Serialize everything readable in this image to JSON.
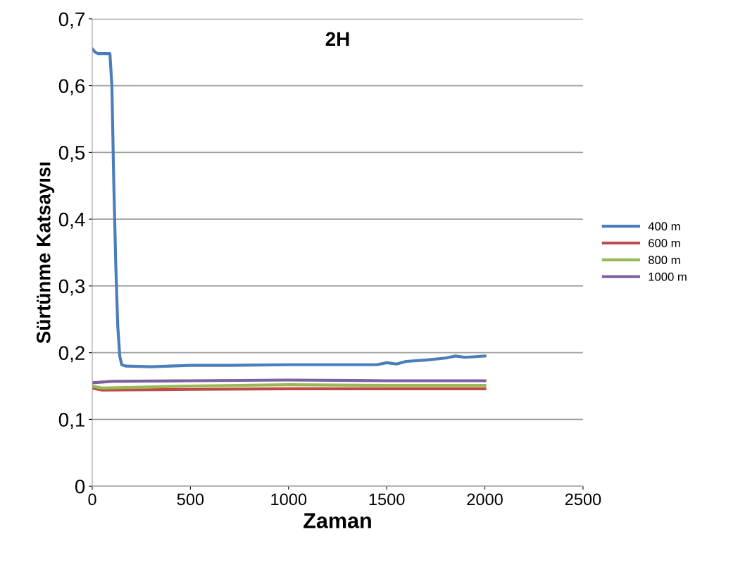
{
  "chart_data": {
    "type": "line",
    "title": "2H",
    "xlabel": "Zaman",
    "ylabel": "Sürtünme Katsayısı",
    "xlim": [
      0,
      2500
    ],
    "xticks": [
      0,
      500,
      1000,
      1500,
      2000,
      2500
    ],
    "ylim": [
      0,
      0.7
    ],
    "yticks": [
      0,
      {
        "value": 0.1,
        "label": "0,1"
      },
      {
        "value": 0.2,
        "label": "0,2"
      },
      {
        "value": 0.3,
        "label": "0,3"
      },
      {
        "value": 0.4,
        "label": "0,4"
      },
      {
        "value": 0.5,
        "label": "0,5"
      },
      {
        "value": 0.6,
        "label": "0,6"
      },
      {
        "value": 0.7,
        "label": "0,7"
      }
    ],
    "grid": "y",
    "legend": "right",
    "marker": "none",
    "line_style": "solid",
    "series": [
      {
        "name": "400 m",
        "color": "#4a7ebb",
        "x": [
          0,
          15,
          30,
          60,
          90,
          100,
          110,
          120,
          130,
          140,
          150,
          170,
          300,
          500,
          700,
          1000,
          1200,
          1450,
          1500,
          1550,
          1600,
          1700,
          1800,
          1850,
          1900,
          2000
        ],
        "values": [
          0.655,
          0.65,
          0.648,
          0.648,
          0.648,
          0.6,
          0.45,
          0.33,
          0.24,
          0.195,
          0.182,
          0.18,
          0.179,
          0.181,
          0.181,
          0.182,
          0.182,
          0.182,
          0.185,
          0.183,
          0.187,
          0.189,
          0.192,
          0.195,
          0.193,
          0.195
        ]
      },
      {
        "name": "600 m",
        "color": "#be4b48",
        "x": [
          0,
          50,
          500,
          1000,
          1500,
          2000
        ],
        "values": [
          0.147,
          0.144,
          0.145,
          0.146,
          0.146,
          0.146
        ]
      },
      {
        "name": "800 m",
        "color": "#98b954",
        "x": [
          0,
          50,
          500,
          1000,
          1500,
          2000
        ],
        "values": [
          0.15,
          0.147,
          0.15,
          0.152,
          0.151,
          0.151
        ]
      },
      {
        "name": "1000 m",
        "color": "#7d60a0",
        "x": [
          0,
          100,
          500,
          1000,
          1500,
          2000
        ],
        "values": [
          0.155,
          0.157,
          0.158,
          0.159,
          0.158,
          0.158
        ]
      }
    ]
  }
}
